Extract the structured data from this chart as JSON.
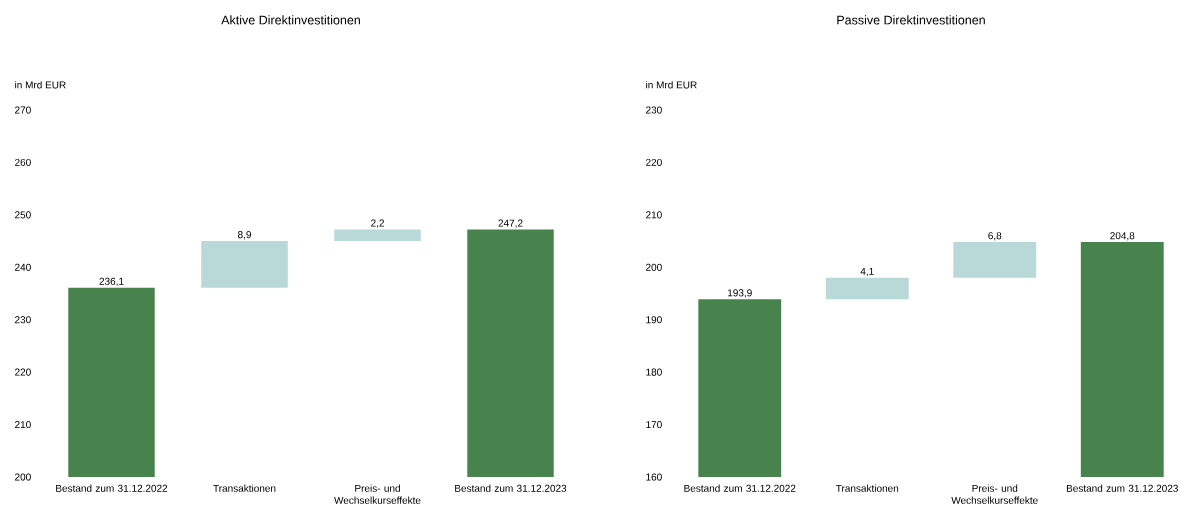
{
  "chart_data": [
    {
      "type": "bar",
      "title": "Aktive Direktinvestitionen",
      "ylabel": "in Mrd EUR",
      "categories": [
        "Bestand zum 31.12.2022",
        "Transaktionen",
        "Preis- und Wechselkurseffekte",
        "Bestand zum 31.12.2023"
      ],
      "values": [
        236.1,
        8.9,
        2.2,
        247.2
      ],
      "base": [
        null,
        236.1,
        245.0,
        null
      ],
      "value_labels": [
        "236,1",
        "8,9",
        "2,2",
        "247,2"
      ],
      "colors": [
        "#48834d",
        "#b9d8d8",
        "#b9d8d8",
        "#48834d"
      ],
      "ylim": [
        200,
        270
      ],
      "yticks": [
        200,
        210,
        220,
        230,
        240,
        250,
        260,
        270
      ]
    },
    {
      "type": "bar",
      "title": "Passive Direktinvestitionen",
      "ylabel": "in Mrd EUR",
      "categories": [
        "Bestand zum 31.12.2022",
        "Transaktionen",
        "Preis- und Wechselkurseffekte",
        "Bestand zum 31.12.2023"
      ],
      "values": [
        193.9,
        4.1,
        6.8,
        204.8
      ],
      "base": [
        null,
        193.9,
        198.0,
        null
      ],
      "value_labels": [
        "193,9",
        "4,1",
        "6,8",
        "204,8"
      ],
      "colors": [
        "#48834d",
        "#b9d8d8",
        "#b9d8d8",
        "#48834d"
      ],
      "ylim": [
        160,
        230
      ],
      "yticks": [
        160,
        170,
        180,
        190,
        200,
        210,
        220,
        230
      ]
    }
  ]
}
